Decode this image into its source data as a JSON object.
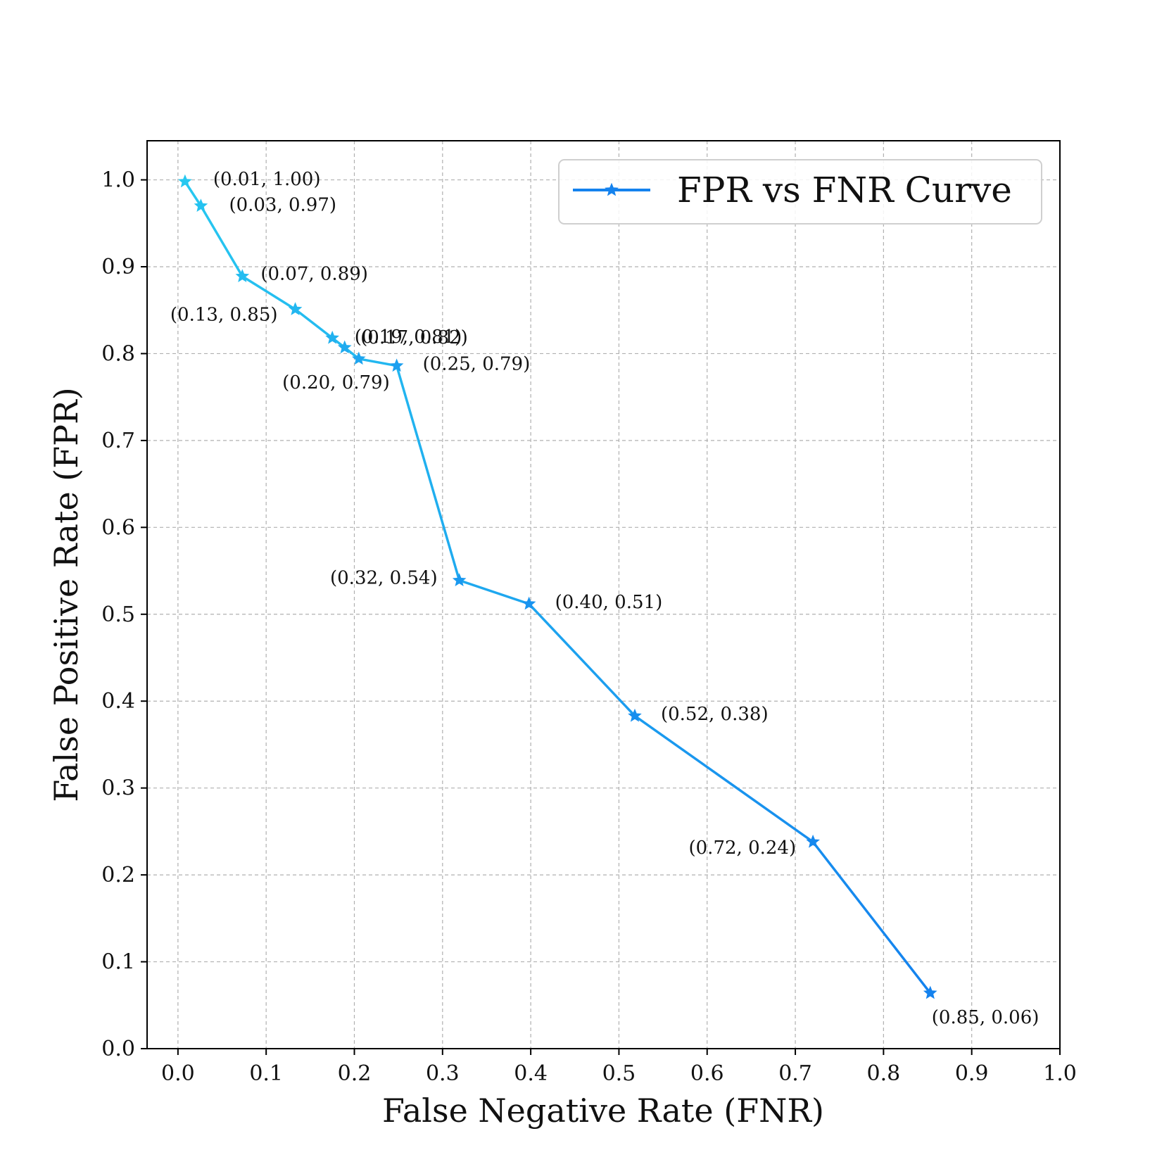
{
  "chart_data": {
    "type": "line",
    "title": "",
    "xlabel": "False Negative Rate (FNR)",
    "ylabel": "False Positive Rate (FPR)",
    "xlim": [
      -0.035,
      1.0
    ],
    "ylim": [
      0.0,
      1.045
    ],
    "grid": true,
    "legend_position": "top-right",
    "x_ticks": [
      0.0,
      0.1,
      0.2,
      0.3,
      0.4,
      0.5,
      0.6,
      0.7,
      0.8,
      0.9,
      1.0
    ],
    "x_tick_labels": [
      "0.0",
      "0.1",
      "0.2",
      "0.3",
      "0.4",
      "0.5",
      "0.6",
      "0.7",
      "0.8",
      "0.9",
      "1.0"
    ],
    "y_ticks": [
      0.0,
      0.1,
      0.2,
      0.3,
      0.4,
      0.5,
      0.6,
      0.7,
      0.8,
      0.9,
      1.0
    ],
    "y_tick_labels": [
      "0.0",
      "0.1",
      "0.2",
      "0.3",
      "0.4",
      "0.5",
      "0.6",
      "0.7",
      "0.8",
      "0.9",
      "1.0"
    ],
    "series": [
      {
        "name": "FPR vs FNR Curve",
        "color_start": "#27c8f0",
        "color_end": "#1482ee",
        "marker": "star",
        "x": [
          0.008,
          0.026,
          0.073,
          0.133,
          0.175,
          0.189,
          0.205,
          0.248,
          0.319,
          0.398,
          0.518,
          0.72,
          0.853
        ],
        "y": [
          0.998,
          0.97,
          0.889,
          0.851,
          0.818,
          0.807,
          0.794,
          0.786,
          0.539,
          0.512,
          0.383,
          0.238,
          0.064
        ],
        "annotations": [
          "(0.01, 1.00)",
          "(0.03, 0.97)",
          "(0.07, 0.89)",
          "(0.13, 0.85)",
          "(0.17, 0.82)",
          "(0.19, 0.81)",
          "(0.20, 0.79)",
          "(0.25, 0.79)",
          "(0.32, 0.54)",
          "(0.40, 0.51)",
          "(0.52, 0.38)",
          "(0.72, 0.24)",
          "(0.85, 0.06)"
        ]
      }
    ]
  }
}
